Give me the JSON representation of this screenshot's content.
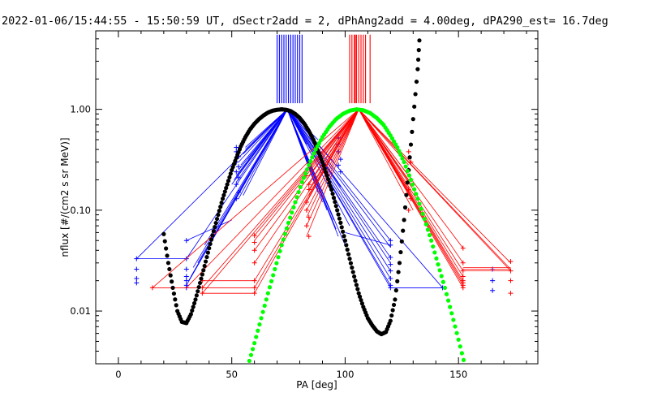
{
  "chart_data": {
    "type": "scatter",
    "title": "2022-01-06/15:44:55 - 15:50:59 UT, dSectr2add = 2, dPhAng2add = 4.00deg, dPA290_est=  16.7deg",
    "xlabel": "PA [deg]",
    "ylabel": "nflux [#/(cm2 s sr MeV)]",
    "x_axis": {
      "min": -10,
      "max": 185,
      "ticks": [
        0,
        50,
        100,
        150
      ],
      "tick_labels": [
        "0",
        "50",
        "100",
        "150"
      ]
    },
    "y_axis": {
      "scale": "log",
      "min": 0.003,
      "max": 6,
      "ticks": [
        0.01,
        0.1,
        1.0
      ],
      "tick_labels": [
        "0.01",
        "0.10",
        "1.00"
      ]
    },
    "grid": false,
    "colors": {
      "blue": "#0000ff",
      "red": "#ff0000",
      "black": "#000000",
      "green": "#00ff00",
      "frame": "#000000"
    },
    "vertical_markers": {
      "blue": {
        "x": [
          70,
          71,
          72,
          73,
          74,
          75,
          76,
          77,
          78,
          79,
          80,
          81
        ],
        "y_from": 1.15,
        "y_to": 5.5
      },
      "red": {
        "x": [
          102,
          103,
          104,
          104.5,
          105,
          106,
          107,
          108,
          109,
          111
        ],
        "y_from": 1.15,
        "y_to": 5.5
      }
    },
    "blue_series": {
      "peak": [
        74.5,
        1.0
      ],
      "line_points": [
        [
          8,
          0.033
        ],
        [
          30,
          0.033
        ],
        [
          30,
          0.018
        ],
        [
          31,
          0.02
        ],
        [
          32,
          0.022
        ],
        [
          33,
          0.027
        ],
        [
          35,
          0.03
        ],
        [
          38,
          0.045
        ],
        [
          50,
          0.18
        ],
        [
          51,
          0.2
        ],
        [
          52,
          0.19
        ],
        [
          53,
          0.25
        ],
        [
          53,
          0.3
        ],
        [
          54,
          0.35
        ],
        [
          56,
          0.4
        ],
        [
          55,
          0.14
        ],
        [
          52,
          0.22
        ],
        [
          54,
          0.28
        ],
        [
          55,
          0.36
        ],
        [
          56,
          0.42
        ],
        [
          57,
          0.32
        ],
        [
          53,
          0.13
        ],
        [
          54,
          0.16
        ],
        [
          83,
          0.45
        ],
        [
          84,
          0.3
        ],
        [
          85,
          0.25
        ],
        [
          86,
          0.2
        ],
        [
          88,
          0.15
        ],
        [
          90,
          0.12
        ],
        [
          92,
          0.1
        ],
        [
          95,
          0.08
        ],
        [
          96,
          0.065
        ],
        [
          97,
          0.055
        ],
        [
          100,
          0.045
        ],
        [
          102,
          0.07
        ],
        [
          98,
          0.17
        ],
        [
          95,
          0.3
        ],
        [
          90,
          0.4
        ],
        [
          88,
          0.5
        ],
        [
          120,
          0.05
        ],
        [
          120,
          0.043
        ],
        [
          120,
          0.034
        ],
        [
          120,
          0.03
        ],
        [
          120,
          0.025
        ],
        [
          120,
          0.021
        ],
        [
          120,
          0.018
        ],
        [
          120,
          0.017
        ],
        [
          143,
          0.017
        ]
      ],
      "plus_markers": [
        [
          8,
          0.033
        ],
        [
          8,
          0.026
        ],
        [
          8,
          0.021
        ],
        [
          8,
          0.019
        ],
        [
          30,
          0.05
        ],
        [
          30,
          0.033
        ],
        [
          30,
          0.026
        ],
        [
          30,
          0.022
        ],
        [
          30,
          0.02
        ],
        [
          30,
          0.018
        ],
        [
          30,
          0.017
        ],
        [
          52,
          0.42
        ],
        [
          52,
          0.38
        ],
        [
          53,
          0.34
        ],
        [
          52,
          0.3
        ],
        [
          53,
          0.27
        ],
        [
          52,
          0.24
        ],
        [
          53,
          0.21
        ],
        [
          52,
          0.18
        ],
        [
          53,
          0.15
        ],
        [
          52,
          0.13
        ],
        [
          97,
          0.52
        ],
        [
          97,
          0.45
        ],
        [
          97,
          0.38
        ],
        [
          98,
          0.32
        ],
        [
          97,
          0.28
        ],
        [
          98,
          0.24
        ],
        [
          120,
          0.05
        ],
        [
          120,
          0.045
        ],
        [
          120,
          0.034
        ],
        [
          120,
          0.029
        ],
        [
          120,
          0.025
        ],
        [
          120,
          0.021
        ],
        [
          120,
          0.018
        ],
        [
          120,
          0.017
        ],
        [
          143,
          0.017
        ],
        [
          165,
          0.026
        ],
        [
          165,
          0.02
        ],
        [
          165,
          0.016
        ]
      ]
    },
    "red_series": {
      "peak": [
        106,
        1.0
      ],
      "line_points": [
        [
          15,
          0.017
        ],
        [
          30,
          0.017
        ],
        [
          37,
          0.017
        ],
        [
          60,
          0.02
        ],
        [
          60,
          0.017
        ],
        [
          60,
          0.015
        ],
        [
          37,
          0.015
        ],
        [
          60,
          0.03
        ],
        [
          60,
          0.04
        ],
        [
          60,
          0.05
        ],
        [
          60,
          0.056
        ],
        [
          83,
          0.055
        ],
        [
          83,
          0.07
        ],
        [
          83,
          0.085
        ],
        [
          83,
          0.1
        ],
        [
          83,
          0.12
        ],
        [
          84,
          0.14
        ],
        [
          84,
          0.16
        ],
        [
          84,
          0.18
        ],
        [
          84,
          0.22
        ],
        [
          128,
          0.28
        ],
        [
          128,
          0.22
        ],
        [
          128,
          0.2
        ],
        [
          129,
          0.18
        ],
        [
          129,
          0.15
        ],
        [
          130,
          0.13
        ],
        [
          130,
          0.1
        ],
        [
          152,
          0.042
        ],
        [
          152,
          0.03
        ],
        [
          152,
          0.025
        ],
        [
          152,
          0.022
        ],
        [
          152,
          0.02
        ],
        [
          152,
          0.019
        ],
        [
          152,
          0.018
        ],
        [
          152,
          0.017
        ],
        [
          173,
          0.03
        ],
        [
          173,
          0.026
        ],
        [
          173,
          0.025
        ]
      ],
      "plus_markers": [
        [
          15,
          0.017
        ],
        [
          37,
          0.02
        ],
        [
          37,
          0.017
        ],
        [
          37,
          0.015
        ],
        [
          60,
          0.056
        ],
        [
          60,
          0.048
        ],
        [
          60,
          0.04
        ],
        [
          60,
          0.03
        ],
        [
          60,
          0.02
        ],
        [
          60,
          0.017
        ],
        [
          60,
          0.015
        ],
        [
          83,
          0.12
        ],
        [
          83,
          0.1
        ],
        [
          84,
          0.085
        ],
        [
          83,
          0.07
        ],
        [
          84,
          0.055
        ],
        [
          84,
          0.18
        ],
        [
          83,
          0.22
        ],
        [
          84,
          0.16
        ],
        [
          128,
          0.38
        ],
        [
          129,
          0.3
        ],
        [
          128,
          0.25
        ],
        [
          129,
          0.2
        ],
        [
          128,
          0.16
        ],
        [
          129,
          0.13
        ],
        [
          128,
          0.1
        ],
        [
          152,
          0.042
        ],
        [
          152,
          0.03
        ],
        [
          152,
          0.025
        ],
        [
          152,
          0.022
        ],
        [
          152,
          0.02
        ],
        [
          152,
          0.019
        ],
        [
          152,
          0.018
        ],
        [
          152,
          0.017
        ],
        [
          173,
          0.031
        ],
        [
          173,
          0.025
        ],
        [
          173,
          0.02
        ],
        [
          173,
          0.015
        ]
      ]
    },
    "black_fit_curve": {
      "x": [
        20,
        22,
        24,
        26,
        28,
        30,
        32,
        34,
        36,
        38,
        40,
        42,
        44,
        46,
        48,
        50,
        52,
        54,
        56,
        58,
        60,
        62,
        64,
        66,
        68,
        70,
        72,
        74,
        76,
        78,
        80,
        82,
        84,
        86,
        88,
        90,
        92,
        94,
        96,
        98,
        100,
        102,
        104,
        106,
        108,
        110,
        112,
        114,
        116,
        118,
        120,
        122,
        124,
        126,
        128,
        130,
        132,
        133
      ],
      "y": [
        0.058,
        0.03,
        0.017,
        0.01,
        0.0078,
        0.0076,
        0.0093,
        0.013,
        0.019,
        0.028,
        0.042,
        0.062,
        0.09,
        0.13,
        0.18,
        0.25,
        0.33,
        0.43,
        0.53,
        0.63,
        0.72,
        0.8,
        0.87,
        0.93,
        0.97,
        0.99,
        1.0,
        0.99,
        0.96,
        0.9,
        0.82,
        0.72,
        0.61,
        0.5,
        0.39,
        0.3,
        0.22,
        0.16,
        0.11,
        0.075,
        0.05,
        0.033,
        0.022,
        0.015,
        0.011,
        0.0085,
        0.0072,
        0.0063,
        0.0059,
        0.0062,
        0.008,
        0.013,
        0.03,
        0.08,
        0.25,
        0.8,
        2.5,
        6.0
      ]
    },
    "green_fit_curve": {
      "x": [
        57,
        60,
        63,
        66,
        69,
        72,
        75,
        78,
        81,
        84,
        87,
        90,
        93,
        96,
        99,
        102,
        105,
        108,
        111,
        114,
        117,
        120,
        123,
        126,
        129,
        132,
        135,
        138,
        141,
        144,
        147,
        150,
        153
      ],
      "y": [
        0.0028,
        0.0048,
        0.0085,
        0.015,
        0.026,
        0.045,
        0.075,
        0.12,
        0.19,
        0.28,
        0.4,
        0.53,
        0.67,
        0.8,
        0.9,
        0.97,
        1.0,
        0.98,
        0.92,
        0.82,
        0.7,
        0.55,
        0.42,
        0.3,
        0.2,
        0.13,
        0.082,
        0.05,
        0.029,
        0.017,
        0.0095,
        0.0052,
        0.0028
      ]
    }
  }
}
